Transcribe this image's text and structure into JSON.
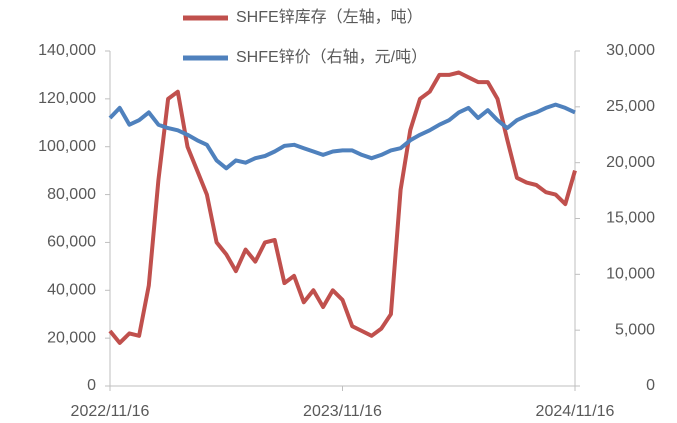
{
  "chart_data": {
    "type": "line",
    "categories": [
      "2022/11/16",
      null,
      null,
      null,
      null,
      null,
      null,
      null,
      null,
      null,
      null,
      null,
      null,
      null,
      null,
      null,
      null,
      null,
      null,
      null,
      null,
      null,
      null,
      null,
      "2023/11/16",
      null,
      null,
      null,
      null,
      null,
      null,
      null,
      null,
      null,
      null,
      null,
      null,
      null,
      null,
      null,
      null,
      null,
      null,
      null,
      null,
      null,
      null,
      null,
      "2024/11/16"
    ],
    "series": [
      {
        "name": "SHFE锌库存（左轴，吨）",
        "color": "#c0504d",
        "axis": "y",
        "values": [
          23000,
          18000,
          22000,
          21000,
          42000,
          86000,
          120000,
          123000,
          100000,
          90000,
          80000,
          60000,
          55000,
          48000,
          57000,
          52000,
          60000,
          61000,
          43000,
          46000,
          35000,
          40000,
          33000,
          40000,
          36000,
          25000,
          23000,
          21000,
          24000,
          30000,
          82000,
          107000,
          120000,
          123000,
          130000,
          130000,
          131000,
          129000,
          127000,
          127000,
          120000,
          103000,
          87000,
          85000,
          84000,
          81000,
          80000,
          76000,
          90000
        ]
      },
      {
        "name": "SHFE锌价（右轴，元/吨）",
        "color": "#4f81bd",
        "axis": "y2",
        "values": [
          24000,
          24900,
          23400,
          23800,
          24500,
          23400,
          23100,
          22900,
          22500,
          22000,
          21600,
          20200,
          19500,
          20200,
          20000,
          20400,
          20600,
          21000,
          21500,
          21600,
          21300,
          21000,
          20700,
          21000,
          21100,
          21100,
          20700,
          20400,
          20700,
          21100,
          21300,
          22000,
          22500,
          22900,
          23400,
          23800,
          24500,
          24900,
          24000,
          24700,
          23800,
          23100,
          23800,
          24200,
          24500,
          24900,
          25200,
          24900,
          24500
        ]
      }
    ],
    "ylim": [
      0,
      140000
    ],
    "yticks": [
      0,
      {
        "value": 20000,
        "label": "20,000"
      },
      {
        "value": 40000,
        "label": "40,000"
      },
      {
        "value": 60000,
        "label": "60,000"
      },
      {
        "value": 80000,
        "label": "80,000"
      },
      {
        "value": 100000,
        "label": "100,000"
      },
      {
        "value": 120000,
        "label": "120,000"
      },
      {
        "value": 140000,
        "label": "140,000"
      }
    ],
    "y2lim": [
      0,
      30000
    ],
    "y2ticks": [
      0,
      {
        "value": 5000,
        "label": "5,000"
      },
      {
        "value": 10000,
        "label": "10,000"
      },
      {
        "value": 15000,
        "label": "15,000"
      },
      {
        "value": 20000,
        "label": "20,000"
      },
      {
        "value": 25000,
        "label": "25,000"
      },
      {
        "value": 30000,
        "label": "30,000"
      }
    ],
    "legend": "top"
  }
}
